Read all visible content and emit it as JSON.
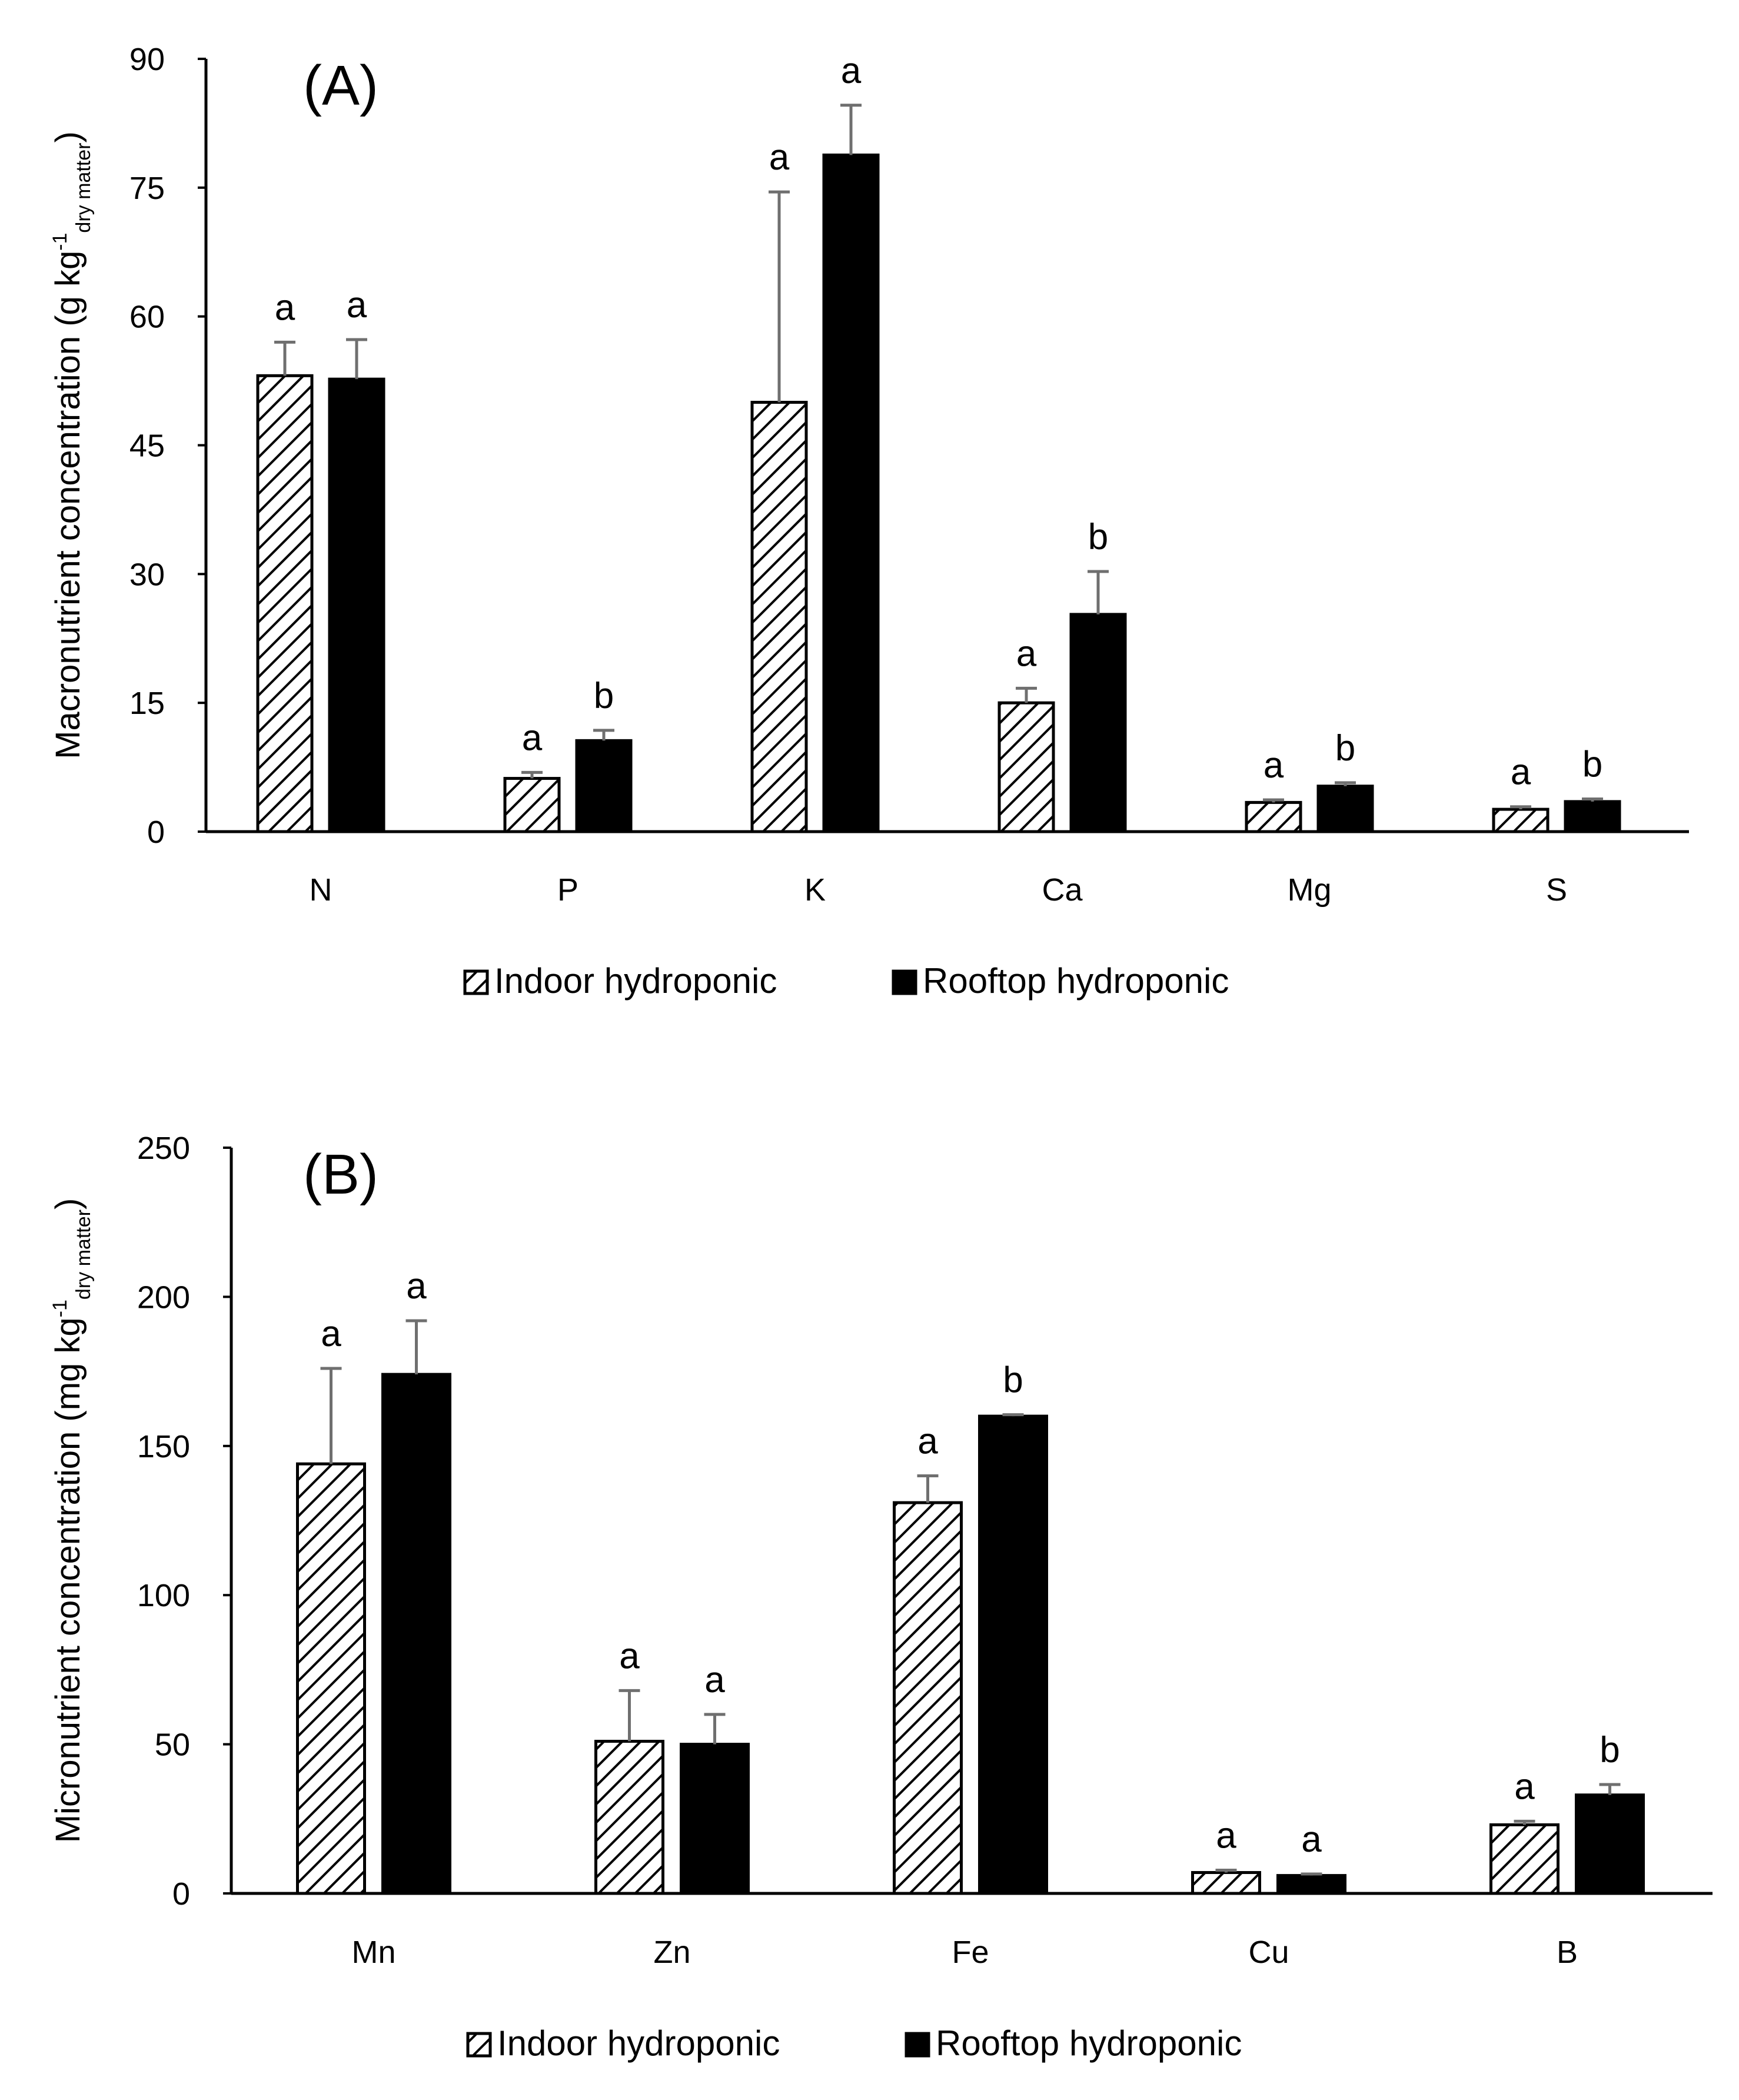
{
  "chart_data": [
    {
      "type": "bar",
      "panel_label": "(A)",
      "ylabel": {
        "main": "Macronutrient concentration (g kg",
        "sup": "-1",
        "sub": "dry matter",
        "close": ")"
      },
      "categories": [
        "N",
        "P",
        "K",
        "Ca",
        "Mg",
        "S"
      ],
      "ylim": [
        0,
        90
      ],
      "yticks": [
        0,
        15,
        30,
        45,
        60,
        75,
        90
      ],
      "series": [
        {
          "name": "Indoor hydroponic",
          "style": "hatched",
          "values": [
            53.1,
            6.2,
            50.0,
            15.0,
            3.4,
            2.6
          ],
          "errors": [
            3.9,
            0.7,
            24.5,
            1.7,
            0.3,
            0.3
          ],
          "letters": [
            "a",
            "a",
            "a",
            "a",
            "a",
            "a"
          ]
        },
        {
          "name": "Rooftop hydroponic",
          "style": "solid",
          "values": [
            52.7,
            10.6,
            78.8,
            25.3,
            5.3,
            3.5
          ],
          "errors": [
            4.6,
            1.2,
            5.8,
            5.0,
            0.4,
            0.3
          ],
          "letters": [
            "a",
            "b",
            "a",
            "b",
            "b",
            "b"
          ]
        }
      ],
      "legend": [
        "Indoor hydroponic",
        "Rooftop hydroponic"
      ],
      "legend_position": "bottom"
    },
    {
      "type": "bar",
      "panel_label": "(B)",
      "ylabel": {
        "main": "Micronutrient concentration (mg kg",
        "sup": "-1",
        "sub": "dry matter",
        "close": ")"
      },
      "categories": [
        "Mn",
        "Zn",
        "Fe",
        "Cu",
        "B"
      ],
      "ylim": [
        0,
        250
      ],
      "yticks": [
        0,
        50,
        100,
        150,
        200,
        250
      ],
      "series": [
        {
          "name": "Indoor hydroponic",
          "style": "hatched",
          "values": [
            144,
            51,
            131,
            7,
            23
          ],
          "errors": [
            32,
            17,
            9,
            0.8,
            1.2
          ],
          "letters": [
            "a",
            "a",
            "a",
            "a",
            "a"
          ]
        },
        {
          "name": "Rooftop hydroponic",
          "style": "solid",
          "values": [
            174,
            50,
            160,
            6,
            33
          ],
          "errors": [
            18,
            10,
            0.5,
            0.5,
            3.5
          ],
          "letters": [
            "a",
            "a",
            "b",
            "a",
            "b"
          ]
        }
      ],
      "legend": [
        "Indoor hydroponic",
        "Rooftop hydroponic"
      ],
      "legend_position": "bottom"
    }
  ]
}
